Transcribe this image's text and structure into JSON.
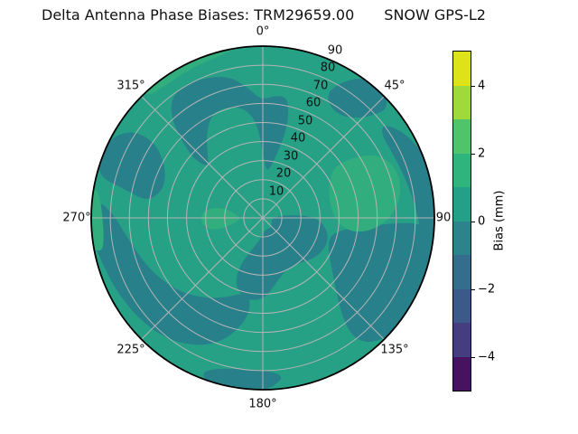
{
  "figure": {
    "title_left": "Delta Antenna Phase Biases: TRM29659.00",
    "title_right": "SNOW GPS-L2"
  },
  "chart_data": {
    "type": "polar_contourf",
    "title": "Delta Antenna Phase Biases: TRM29659.00     SNOW GPS-L2",
    "theta_zero_location": "top",
    "theta_direction": "clockwise",
    "theta_tick_values": [
      0,
      45,
      90,
      135,
      180,
      225,
      270,
      315
    ],
    "theta_tick_labels": [
      "0°",
      "45°",
      "90",
      "135°",
      "180°",
      "225°",
      "270°",
      "315°"
    ],
    "r_tick_values": [
      10,
      20,
      30,
      40,
      50,
      60,
      70,
      80,
      90
    ],
    "r_tick_labels": [
      "10",
      "20",
      "30",
      "40",
      "50",
      "60",
      "70",
      "80",
      "90"
    ],
    "r_max": 90,
    "r_label_angle_deg": 22.5,
    "grid_color": "#b5b5b5",
    "edge_color": "#000000",
    "colorbar": {
      "label": "Bias (mm)",
      "vmin": -5,
      "vmax": 5,
      "n_bins": 10,
      "tick_values": [
        4,
        2,
        0,
        -2,
        -4
      ],
      "tick_labels": [
        "4",
        "2",
        "0",
        "−2",
        "−4"
      ],
      "bin_colors_top_to_bottom": [
        "#dde318",
        "#9fda3a",
        "#4fc46a",
        "#2eb47c",
        "#23a087",
        "#2c838c",
        "#346e8c",
        "#3b5a8a",
        "#443d80",
        "#471361"
      ]
    },
    "field": {
      "base_bias_mm": "0 to 1",
      "base_color": "#26a186",
      "regions": [
        {
          "name": "dark-top-crescent",
          "bias_mm": "-1 to 0",
          "color": "#28808a",
          "points": [
            [
              -50,
              48
            ],
            [
              -44,
              68
            ],
            [
              -38,
              79
            ],
            [
              -30,
              81
            ],
            [
              -21,
              79
            ],
            [
              -13,
              76
            ],
            [
              -6,
              68
            ],
            [
              -1,
              62
            ],
            [
              5,
              64
            ],
            [
              11,
              65
            ],
            [
              14,
              57
            ],
            [
              15,
              45
            ],
            [
              12,
              33
            ],
            [
              8,
              26
            ],
            [
              4,
              25
            ],
            [
              0,
              34
            ],
            [
              -3,
              48
            ],
            [
              -8,
              57
            ],
            [
              -16,
              61
            ],
            [
              -26,
              61
            ],
            [
              -34,
              53
            ],
            [
              -42,
              43
            ],
            [
              -47,
              39
            ]
          ]
        },
        {
          "name": "dark-45deg-edge-blob",
          "bias_mm": "-1 to 0",
          "color": "#28808a",
          "points": [
            [
              27,
              73
            ],
            [
              30,
              82
            ],
            [
              35,
              90
            ],
            [
              42,
              93
            ],
            [
              49,
              88
            ],
            [
              47,
              78
            ],
            [
              41,
              69
            ],
            [
              33,
              67
            ]
          ]
        },
        {
          "name": "dark-right-edge-strip",
          "bias_mm": "-1 to 0",
          "color": "#28808a",
          "points": [
            [
              52,
              80
            ],
            [
              58,
              86
            ],
            [
              66,
              90
            ],
            [
              76,
              92
            ],
            [
              86,
              93
            ],
            [
              96,
              93
            ],
            [
              101,
              89
            ],
            [
              97,
              84
            ],
            [
              88,
              81
            ],
            [
              76,
              78
            ],
            [
              63,
              76
            ],
            [
              55,
              76
            ]
          ]
        },
        {
          "name": "dark-bottom-right-blob",
          "bias_mm": "-1 to 0",
          "color": "#28808a",
          "points": [
            [
              95,
              90
            ],
            [
              103,
              93
            ],
            [
              113,
              94
            ],
            [
              124,
              93
            ],
            [
              133,
              91
            ],
            [
              140,
              86
            ],
            [
              143,
              78
            ],
            [
              141,
              66
            ],
            [
              134,
              53
            ],
            [
              124,
              43
            ],
            [
              113,
              37
            ],
            [
              103,
              37
            ],
            [
              97,
              45
            ],
            [
              94,
              58
            ],
            [
              92,
              72
            ],
            [
              92,
              82
            ]
          ]
        },
        {
          "name": "dark-bottom-edge-patch",
          "bias_mm": "-1 to 0",
          "color": "#28808a",
          "points": [
            [
              172,
              84
            ],
            [
              178,
              90
            ],
            [
              186,
              93
            ],
            [
              196,
              93
            ],
            [
              202,
              88
            ],
            [
              198,
              83
            ],
            [
              188,
              80
            ],
            [
              178,
              80
            ]
          ]
        },
        {
          "name": "dark-bottom-left-crescent",
          "bias_mm": "-1 to 0",
          "color": "#28808a",
          "points": [
            [
              188,
              52
            ],
            [
              196,
              66
            ],
            [
              206,
              75
            ],
            [
              218,
              81
            ],
            [
              231,
              84
            ],
            [
              244,
              86
            ],
            [
              256,
              88
            ],
            [
              265,
              91
            ],
            [
              272,
              92
            ],
            [
              276,
              86
            ],
            [
              271,
              78
            ],
            [
              262,
              72
            ],
            [
              251,
              67
            ],
            [
              240,
              63
            ],
            [
              228,
              58
            ],
            [
              216,
              52
            ],
            [
              205,
              46
            ],
            [
              196,
              41
            ],
            [
              189,
              42
            ]
          ]
        },
        {
          "name": "dark-left-edge-blob",
          "bias_mm": "-1 to 0",
          "color": "#28808a",
          "points": [
            [
              278,
              62
            ],
            [
              282,
              75
            ],
            [
              284,
              88
            ],
            [
              290,
              92
            ],
            [
              298,
              90
            ],
            [
              304,
              82
            ],
            [
              305,
              70
            ],
            [
              300,
              60
            ],
            [
              292,
              55
            ],
            [
              284,
              55
            ]
          ]
        },
        {
          "name": "dark-central-blob",
          "bias_mm": "-1 to 0",
          "color": "#28808a",
          "points": [
            [
              82,
              12
            ],
            [
              88,
              26
            ],
            [
              97,
              33
            ],
            [
              110,
              37
            ],
            [
              127,
              35
            ],
            [
              143,
              30
            ],
            [
              158,
              30
            ],
            [
              170,
              36
            ],
            [
              180,
              43
            ],
            [
              192,
              44
            ],
            [
              203,
              38
            ],
            [
              206,
              27
            ],
            [
              198,
              17
            ],
            [
              184,
              10
            ],
            [
              165,
              6
            ],
            [
              140,
              7
            ],
            [
              112,
              5
            ],
            [
              92,
              5
            ]
          ]
        },
        {
          "name": "light-top-left-edge-sliver",
          "bias_mm": "1 to 2",
          "color": "#32ad7d",
          "points": [
            [
              -44,
              88
            ],
            [
              -36,
              86
            ],
            [
              -26,
              87
            ],
            [
              -14,
              88
            ],
            [
              -7,
              91
            ],
            [
              -9,
              95
            ],
            [
              -20,
              96
            ],
            [
              -32,
              95
            ],
            [
              -42,
              93
            ]
          ]
        },
        {
          "name": "light-left-edge-sliver",
          "bias_mm": "1 to 2",
          "color": "#32ad7d",
          "points": [
            [
              258,
              86
            ],
            [
              263,
              84
            ],
            [
              270,
              84
            ],
            [
              277,
              86
            ],
            [
              281,
              90
            ],
            [
              278,
              94
            ],
            [
              268,
              95
            ],
            [
              260,
              92
            ]
          ]
        },
        {
          "name": "light-inner-left-blob",
          "bias_mm": "1 to 2",
          "color": "#32ad7d",
          "points": [
            [
              258,
              17
            ],
            [
              255,
              24
            ],
            [
              259,
              30
            ],
            [
              268,
              33
            ],
            [
              278,
              31
            ],
            [
              284,
              23
            ],
            [
              281,
              16
            ],
            [
              271,
              12
            ],
            [
              263,
              13
            ]
          ]
        },
        {
          "name": "light-right-band",
          "bias_mm": "1 to 2",
          "color": "#32ad7d",
          "points": [
            [
              54,
              46
            ],
            [
              57,
              60
            ],
            [
              62,
              70
            ],
            [
              70,
              75
            ],
            [
              80,
              74
            ],
            [
              89,
              68
            ],
            [
              96,
              59
            ],
            [
              99,
              49
            ],
            [
              96,
              41
            ],
            [
              87,
              37
            ],
            [
              75,
              36
            ],
            [
              63,
              39
            ]
          ]
        }
      ]
    }
  }
}
